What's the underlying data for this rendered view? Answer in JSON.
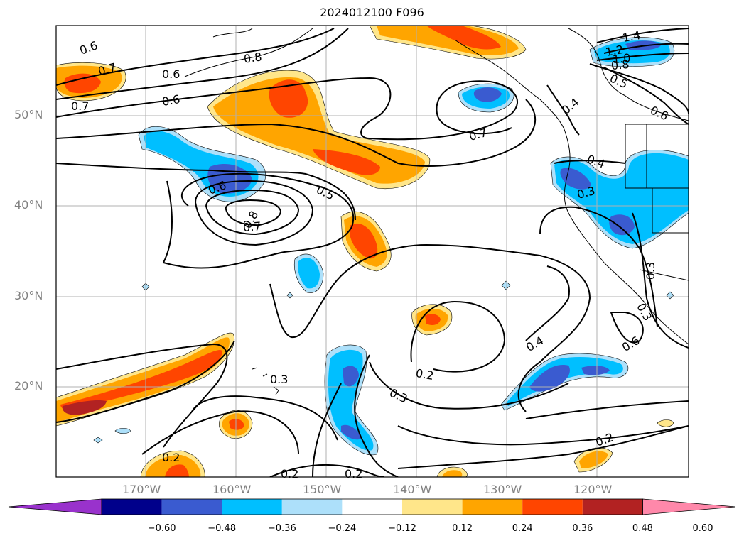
{
  "title": "2024012100 F096",
  "lat_labels": [
    "50°N",
    "40°N",
    "30°N",
    "20°N"
  ],
  "lon_labels": [
    "170°W",
    "160°W",
    "150°W",
    "140°W",
    "130°W",
    "120°W"
  ],
  "contour_labels": [
    "0.6",
    "0.7",
    "0.8",
    "0.7",
    "0.6",
    "1.4",
    "1.2",
    "1.0",
    "0.8",
    "0.6",
    "0.5",
    "0.4",
    "0.6",
    "0.7",
    "0.4",
    "0.5",
    "0.6",
    "0.8",
    "0.7",
    "0.3",
    "0.3",
    "0.3",
    "0.4",
    "0.3",
    "0.6",
    "0.2",
    "0.3",
    "0.2",
    "0.2",
    "0.2",
    "0.2"
  ],
  "colorbar": {
    "ticks": [
      "−0.60",
      "−0.48",
      "−0.36",
      "−0.24",
      "−0.12",
      "0.12",
      "0.24",
      "0.36",
      "0.48",
      "0.60"
    ],
    "colors": [
      "#9932CC",
      "#00008B",
      "#3A5BD0",
      "#00BFFF",
      "#ADE0FA",
      "#FFFFFF",
      "#FFE68A",
      "#FFA500",
      "#FF4500",
      "#B22222",
      "#FF88AA"
    ]
  },
  "fill_colors": {
    "neg_light": "#ADE0FA",
    "neg_mid": "#00BFFF",
    "neg_dark": "#3A5BD0",
    "pos_light": "#FFE68A",
    "pos_mid": "#FFA500",
    "pos_dark": "#FF4500",
    "pos_darker": "#B22222"
  }
}
